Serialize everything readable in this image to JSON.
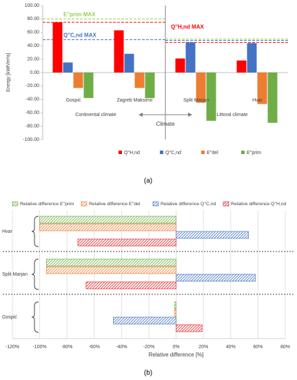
{
  "chart_data": [
    {
      "type": "bar",
      "caption": "(a)",
      "xlabel": "Climate",
      "ylabel": "Energy [kWh/m²a]",
      "categories": [
        "Gospić",
        "Zagreb Maksimir",
        "Split Marjan",
        "Hvar"
      ],
      "series": [
        {
          "name": "Q''H,nd",
          "color": "#ff0000",
          "values": [
            75,
            63,
            21,
            18
          ]
        },
        {
          "name": "Q''C,nd",
          "color": "#4472c4",
          "values": [
            15,
            28,
            45,
            44
          ]
        },
        {
          "name": "E''del",
          "color": "#ed7d31",
          "values": [
            -23,
            -23,
            -45,
            -47
          ]
        },
        {
          "name": "E''prim",
          "color": "#70ad47",
          "values": [
            -38,
            -38,
            -72,
            -75
          ]
        }
      ],
      "ylim": [
        -100,
        100
      ],
      "yticks": [
        {
          "value": -100,
          "label": "-100.00"
        },
        {
          "value": -80,
          "label": "-80.00"
        },
        {
          "value": -60,
          "label": "-60.00"
        },
        {
          "value": -40,
          "label": "-40.00"
        },
        {
          "value": -20,
          "label": "-20.00"
        },
        {
          "value": 0,
          "label": "0.00"
        },
        {
          "value": 20,
          "label": "20.00"
        },
        {
          "value": 40,
          "label": "40.00"
        },
        {
          "value": 60,
          "label": "60.00"
        },
        {
          "value": 80,
          "label": "80.00"
        },
        {
          "value": 100,
          "label": "100.00"
        }
      ],
      "zones": [
        "Continental climate",
        "Littoral climate"
      ],
      "reference_lines": [
        {
          "name": "E''prim MAX",
          "color": "#92d050",
          "values": [
            80,
            50
          ]
        },
        {
          "name": "Q''C,nd MAX",
          "color": "#4472c4",
          "values": [
            49,
            48
          ]
        },
        {
          "name": "Q''H,nd MAX",
          "color": "#ff0000",
          "values": [
            75,
            45
          ]
        }
      ]
    },
    {
      "type": "hbar",
      "caption": "(b)",
      "xlabel": "Relative difference [%]",
      "categories": [
        "Hvar",
        "Split Marjan",
        "Gospić"
      ],
      "series": [
        {
          "name": "Relative difference E''prim",
          "color": "#70ad47",
          "values": [
            -100,
            -95,
            -1
          ]
        },
        {
          "name": "Relative difference E''del",
          "color": "#ed7d31",
          "values": [
            -100,
            -95,
            -1
          ]
        },
        {
          "name": "Relative difference Q''C,nd",
          "color": "#4472c4",
          "values": [
            53,
            58,
            -46
          ]
        },
        {
          "name": "Relative difference Q''H,nd",
          "color": "#e8242b",
          "values": [
            -72,
            -66,
            19
          ]
        }
      ],
      "xlim": [
        -120,
        80
      ],
      "xticks": [
        {
          "value": -120,
          "label": "-120%"
        },
        {
          "value": -100,
          "label": "-100%"
        },
        {
          "value": -80,
          "label": "-80%"
        },
        {
          "value": -60,
          "label": "-60%"
        },
        {
          "value": -40,
          "label": "-40%"
        },
        {
          "value": -20,
          "label": "-20%"
        },
        {
          "value": 0,
          "label": "0%"
        },
        {
          "value": 20,
          "label": "20%"
        },
        {
          "value": 40,
          "label": "40%"
        },
        {
          "value": 60,
          "label": "60%"
        },
        {
          "value": 80,
          "label": "80%"
        }
      ],
      "grid": true
    }
  ]
}
